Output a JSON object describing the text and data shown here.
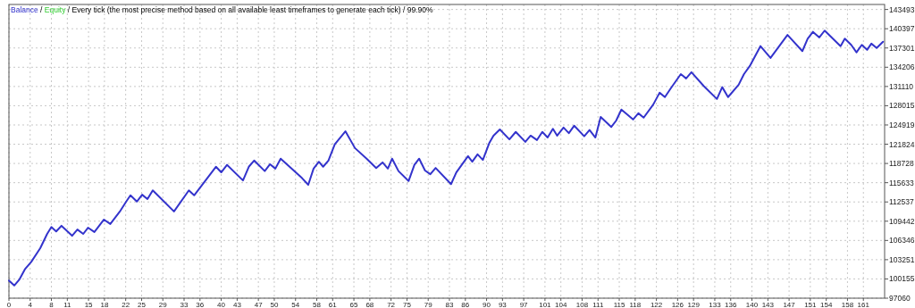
{
  "chart_data": {
    "type": "line",
    "legend": "top left",
    "grid": true,
    "line_style": "solid",
    "annotations": [
      "/",
      "/ Every tick (the most precise method based on all available least timeframes to generate each tick) / 99.90%"
    ],
    "xlim": [
      0,
      165
    ],
    "ylim": [
      97060,
      144300
    ],
    "xticks": [
      0,
      4,
      8,
      11,
      15,
      18,
      22,
      25,
      29,
      33,
      36,
      40,
      43,
      47,
      50,
      54,
      58,
      61,
      65,
      68,
      72,
      75,
      79,
      83,
      86,
      90,
      93,
      97,
      101,
      104,
      108,
      111,
      115,
      118,
      122,
      126,
      129,
      133,
      136,
      140,
      143,
      147,
      151,
      154,
      158,
      161
    ],
    "yticks": [
      97060,
      100155,
      103251,
      106346,
      109442,
      112537,
      115633,
      118728,
      121824,
      124919,
      128015,
      131110,
      134206,
      137301,
      140397,
      143493
    ],
    "x": [
      0,
      1,
      2,
      3,
      4.2,
      5.9,
      7.2,
      8,
      8.9,
      9.9,
      11.9,
      12.9,
      14,
      14.9,
      16.1,
      17.9,
      19.1,
      20.9,
      22.1,
      22.9,
      24.1,
      25.1,
      26.1,
      27.1,
      31.1,
      33.9,
      34.9,
      39,
      40,
      41.1,
      44.1,
      45.2,
      46.2,
      48.2,
      49.2,
      50.2,
      51.2,
      55.2,
      56.4,
      57.4,
      58.4,
      59.2,
      60.2,
      61.4,
      63.4,
      65.2,
      67.4,
      69.2,
      70.4,
      71.4,
      72.2,
      73.4,
      75.3,
      76.4,
      77.3,
      78.4,
      79.4,
      80.4,
      83.3,
      84.3,
      86.5,
      87.3,
      88.3,
      89.3,
      90.5,
      91.3,
      92.5,
      94.3,
      95.5,
      97.3,
      98.3,
      99.5,
      100.5,
      101.5,
      102.5,
      103.3,
      104.5,
      105.5,
      106.5,
      108.4,
      109.4,
      110.5,
      111.5,
      113.5,
      114.4,
      115.4,
      117.6,
      118.6,
      119.6,
      121.4,
      122.6,
      123.6,
      124.7,
      126.6,
      127.6,
      128.6,
      130.9,
      133.4,
      134.4,
      135.5,
      137.5,
      138.5,
      139.6,
      141.6,
      143.5,
      146.7,
      149.5,
      150.5,
      151.5,
      152.7,
      153.7,
      156.7,
      157.5,
      158.7,
      159.7,
      160.7,
      161.7,
      162.5,
      163.5,
      164.7
    ],
    "series": [
      {
        "name": "Balance",
        "color": "#3333cc",
        "values": [
          99900,
          99100,
          100100,
          101700,
          102900,
          105100,
          107400,
          108500,
          107800,
          108700,
          107100,
          108100,
          107400,
          108400,
          107700,
          109700,
          109000,
          111000,
          112600,
          113600,
          112600,
          113700,
          113000,
          114400,
          111000,
          114400,
          113600,
          118200,
          117300,
          118500,
          116000,
          118200,
          119200,
          117500,
          118600,
          117900,
          119500,
          116400,
          115300,
          117900,
          119000,
          118200,
          119200,
          121800,
          123900,
          121200,
          119500,
          118000,
          118900,
          117900,
          119500,
          117500,
          115900,
          118500,
          119500,
          117600,
          117000,
          118000,
          115400,
          117300,
          119900,
          119000,
          120200,
          119300,
          122000,
          123200,
          124200,
          122600,
          123800,
          122200,
          123200,
          122500,
          123800,
          122900,
          124300,
          123200,
          124500,
          123600,
          124800,
          123100,
          124100,
          122900,
          126200,
          124600,
          125600,
          127400,
          125800,
          126800,
          126100,
          128200,
          130100,
          129400,
          130800,
          133100,
          132400,
          133400,
          131200,
          129100,
          131000,
          129400,
          131400,
          133100,
          134400,
          137600,
          135700,
          139400,
          136800,
          138800,
          139900,
          139000,
          140100,
          137600,
          138800,
          137800,
          136600,
          137800,
          137000,
          138000,
          137300,
          138300
        ]
      },
      {
        "name": "Equity",
        "color": "#33cc33",
        "values": [
          null,
          null,
          null,
          null,
          null,
          null,
          null,
          null,
          null,
          null,
          null,
          null,
          null,
          null,
          null,
          null,
          null,
          null,
          null,
          null,
          null,
          null,
          null,
          null,
          null,
          null,
          null,
          null,
          null,
          null,
          null,
          null,
          null,
          null,
          null,
          null,
          null,
          null,
          null,
          null,
          null,
          null,
          null,
          null,
          null,
          null,
          null,
          null,
          null,
          null,
          null,
          null,
          null,
          null,
          null,
          null,
          null,
          null,
          null,
          null,
          null,
          null,
          null,
          null,
          null,
          null,
          null,
          null,
          null,
          null,
          null,
          null,
          null,
          null,
          null,
          null,
          null,
          null,
          null,
          null,
          null,
          null,
          null,
          null,
          null,
          null,
          null,
          null,
          null,
          null,
          null,
          null,
          null,
          null,
          null,
          null,
          null,
          null,
          null,
          null,
          null,
          null,
          null,
          null,
          null,
          null,
          null,
          null,
          null,
          null,
          null,
          null,
          null,
          null,
          null,
          null,
          null,
          null,
          null,
          null
        ]
      }
    ]
  }
}
